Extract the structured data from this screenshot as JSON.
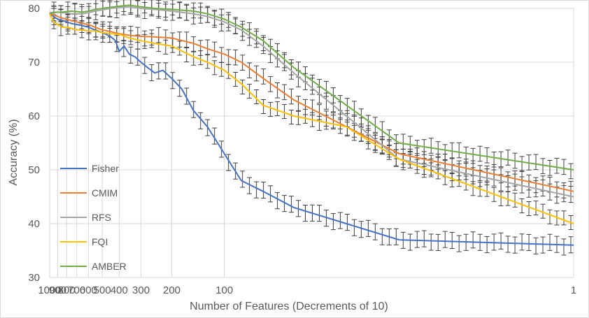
{
  "chart_data": {
    "type": "line",
    "title": "",
    "xlabel": "Number of Features (Decrements of 10)",
    "ylabel": "Accuracy (%)",
    "xlim": [
      1000,
      1
    ],
    "ylim": [
      30,
      80
    ],
    "x_ticks": [
      1000,
      900,
      800,
      700,
      600,
      500,
      400,
      300,
      200,
      100,
      1
    ],
    "y_ticks": [
      30,
      40,
      50,
      60,
      70,
      80
    ],
    "grid": true,
    "error_bars": true,
    "legend_position": "left-bottom",
    "series": [
      {
        "name": "Fisher",
        "color": "#4472C4",
        "points": [
          [
            1000,
            79
          ],
          [
            950,
            78.5
          ],
          [
            900,
            78
          ],
          [
            850,
            77.8
          ],
          [
            800,
            77.5
          ],
          [
            750,
            77.2
          ],
          [
            700,
            77
          ],
          [
            650,
            76.8
          ],
          [
            600,
            76.5
          ],
          [
            550,
            76
          ],
          [
            500,
            75.5
          ],
          [
            450,
            74.8
          ],
          [
            420,
            74
          ],
          [
            400,
            72
          ],
          [
            375,
            73
          ],
          [
            350,
            71.5
          ],
          [
            325,
            71
          ],
          [
            300,
            70
          ],
          [
            275,
            69
          ],
          [
            250,
            68
          ],
          [
            225,
            68.5
          ],
          [
            200,
            67
          ],
          [
            175,
            65
          ],
          [
            150,
            61
          ],
          [
            125,
            58
          ],
          [
            100,
            53
          ],
          [
            80,
            48
          ],
          [
            60,
            46
          ],
          [
            40,
            43
          ],
          [
            20,
            40
          ],
          [
            10,
            37
          ],
          [
            1,
            36
          ]
        ],
        "error": 1.5
      },
      {
        "name": "CMIM",
        "color": "#ED7D31",
        "points": [
          [
            1000,
            79
          ],
          [
            950,
            78.8
          ],
          [
            900,
            78.5
          ],
          [
            850,
            78.2
          ],
          [
            800,
            78
          ],
          [
            750,
            77.7
          ],
          [
            700,
            77.5
          ],
          [
            650,
            77.2
          ],
          [
            600,
            77
          ],
          [
            550,
            76.5
          ],
          [
            500,
            76
          ],
          [
            450,
            75.7
          ],
          [
            400,
            75.3
          ],
          [
            350,
            75
          ],
          [
            300,
            74.8
          ],
          [
            250,
            74.7
          ],
          [
            200,
            74.5
          ],
          [
            150,
            73.5
          ],
          [
            125,
            72.5
          ],
          [
            100,
            71.5
          ],
          [
            80,
            70
          ],
          [
            60,
            67
          ],
          [
            40,
            63
          ],
          [
            20,
            58
          ],
          [
            10,
            53
          ],
          [
            1,
            46
          ]
        ],
        "error": 1.4
      },
      {
        "name": "RFS",
        "color": "#A5A5A5",
        "points": [
          [
            1000,
            79.2
          ],
          [
            950,
            79.3
          ],
          [
            900,
            79.3
          ],
          [
            850,
            79.2
          ],
          [
            800,
            79.2
          ],
          [
            750,
            79
          ],
          [
            700,
            79
          ],
          [
            650,
            79
          ],
          [
            600,
            79.2
          ],
          [
            550,
            79.5
          ],
          [
            500,
            79.7
          ],
          [
            450,
            80
          ],
          [
            400,
            80.2
          ],
          [
            350,
            80.3
          ],
          [
            300,
            80
          ],
          [
            250,
            79.8
          ],
          [
            200,
            79.5
          ],
          [
            150,
            79
          ],
          [
            125,
            78.5
          ],
          [
            100,
            77.5
          ],
          [
            80,
            76
          ],
          [
            60,
            73
          ],
          [
            40,
            68
          ],
          [
            20,
            60
          ],
          [
            10,
            52
          ],
          [
            1,
            45
          ]
        ],
        "error": 1.5
      },
      {
        "name": "FQI",
        "color": "#FFC000",
        "points": [
          [
            1000,
            79
          ],
          [
            950,
            77.5
          ],
          [
            900,
            77
          ],
          [
            850,
            76.5
          ],
          [
            800,
            76.5
          ],
          [
            750,
            76.3
          ],
          [
            700,
            76
          ],
          [
            650,
            76
          ],
          [
            600,
            75.8
          ],
          [
            550,
            75.8
          ],
          [
            500,
            75.5
          ],
          [
            450,
            75.3
          ],
          [
            400,
            75.2
          ],
          [
            350,
            74.5
          ],
          [
            300,
            74
          ],
          [
            250,
            73.5
          ],
          [
            200,
            73
          ],
          [
            150,
            71
          ],
          [
            125,
            70
          ],
          [
            100,
            68.5
          ],
          [
            80,
            66
          ],
          [
            60,
            62
          ],
          [
            40,
            60
          ],
          [
            20,
            58
          ],
          [
            10,
            52
          ],
          [
            1,
            40
          ]
        ],
        "error": 1.3
      },
      {
        "name": "AMBER",
        "color": "#70AD47",
        "points": [
          [
            1000,
            79
          ],
          [
            950,
            79.2
          ],
          [
            900,
            79.3
          ],
          [
            850,
            79.3
          ],
          [
            800,
            79.4
          ],
          [
            750,
            79.5
          ],
          [
            700,
            79.4
          ],
          [
            650,
            79.3
          ],
          [
            600,
            79.5
          ],
          [
            550,
            79.8
          ],
          [
            500,
            80
          ],
          [
            450,
            80.2
          ],
          [
            400,
            80.4
          ],
          [
            350,
            80.6
          ],
          [
            300,
            80.3
          ],
          [
            250,
            80
          ],
          [
            200,
            79.8
          ],
          [
            150,
            79.5
          ],
          [
            125,
            79
          ],
          [
            100,
            78
          ],
          [
            80,
            76.5
          ],
          [
            60,
            74
          ],
          [
            40,
            69
          ],
          [
            20,
            62
          ],
          [
            10,
            55
          ],
          [
            1,
            50
          ]
        ],
        "error": 1.4
      }
    ]
  }
}
